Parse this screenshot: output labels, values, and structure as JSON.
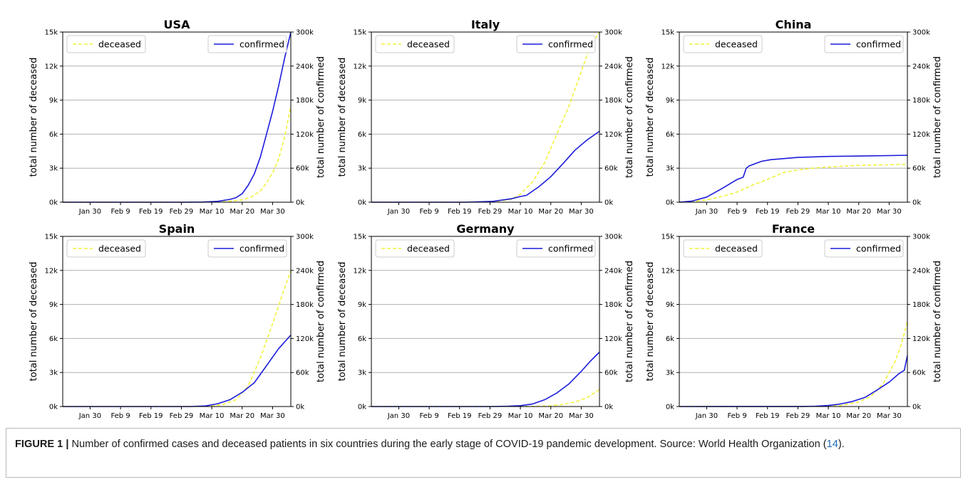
{
  "chart_data": [
    {
      "type": "line",
      "title": "USA",
      "xlabel": "",
      "ylabel": "total number of deceased",
      "ylabel_right": "total number of confirmed",
      "x_ticks": [
        "Jan 30",
        "Feb 9",
        "Feb 19",
        "Feb 29",
        "Mar 10",
        "Mar 20",
        "Mar 30"
      ],
      "x_range": [
        "Jan 21",
        "Apr 5"
      ],
      "ylim": [
        0,
        15000
      ],
      "ylim_right": [
        0,
        300000
      ],
      "y_ticks": [
        "0k",
        "3k",
        "6k",
        "9k",
        "12k",
        "15k"
      ],
      "y_ticks_right": [
        "0k",
        "60k",
        "120k",
        "180k",
        "240k",
        "300k"
      ],
      "grid": true,
      "legend": [
        {
          "name": "deceased",
          "position": "top-left",
          "color": "#f2f23a",
          "style": "dashed"
        },
        {
          "name": "confirmed",
          "position": "top-right",
          "color": "#1c1cdc",
          "style": "solid"
        }
      ],
      "series": [
        {
          "name": "deceased",
          "axis": "left",
          "x": [
            "Jan 21",
            "Feb 29",
            "Mar 10",
            "Mar 15",
            "Mar 20",
            "Mar 23",
            "Mar 26",
            "Mar 28",
            "Mar 30",
            "Apr 1",
            "Apr 3",
            "Apr 5"
          ],
          "values": [
            0,
            0,
            20,
            60,
            200,
            450,
            1000,
            1700,
            2600,
            3800,
            5800,
            8500
          ]
        },
        {
          "name": "confirmed",
          "axis": "right",
          "x": [
            "Jan 21",
            "Feb 29",
            "Mar 7",
            "Mar 12",
            "Mar 16",
            "Mar 18",
            "Mar 20",
            "Mar 22",
            "Mar 24",
            "Mar 26",
            "Mar 28",
            "Mar 30",
            "Apr 1",
            "Apr 3",
            "Apr 5"
          ],
          "values": [
            0,
            0,
            200,
            1500,
            5000,
            8000,
            15000,
            30000,
            50000,
            80000,
            120000,
            160000,
            205000,
            255000,
            300000
          ]
        }
      ]
    },
    {
      "type": "line",
      "title": "Italy",
      "xlabel": "",
      "ylabel": "total number of deceased",
      "ylabel_right": "total number of confirmed",
      "x_ticks": [
        "Jan 30",
        "Feb 9",
        "Feb 19",
        "Feb 29",
        "Mar 10",
        "Mar 20",
        "Mar 30"
      ],
      "x_range": [
        "Jan 21",
        "Apr 5"
      ],
      "ylim": [
        0,
        15000
      ],
      "ylim_right": [
        0,
        300000
      ],
      "y_ticks": [
        "0k",
        "3k",
        "6k",
        "9k",
        "12k",
        "15k"
      ],
      "y_ticks_right": [
        "0k",
        "60k",
        "120k",
        "180k",
        "240k",
        "300k"
      ],
      "grid": true,
      "legend": [
        {
          "name": "deceased",
          "position": "top-left",
          "color": "#f2f23a",
          "style": "dashed"
        },
        {
          "name": "confirmed",
          "position": "top-right",
          "color": "#1c1cdc",
          "style": "solid"
        }
      ],
      "series": [
        {
          "name": "deceased",
          "axis": "left",
          "x": [
            "Jan 21",
            "Feb 21",
            "Mar 1",
            "Mar 7",
            "Mar 10",
            "Mar 14",
            "Mar 18",
            "Mar 22",
            "Mar 26",
            "Mar 30",
            "Apr 2",
            "Apr 5"
          ],
          "values": [
            0,
            0,
            30,
            250,
            700,
            1800,
            3500,
            6000,
            8500,
            11500,
            13800,
            15000
          ]
        },
        {
          "name": "confirmed",
          "axis": "right",
          "x": [
            "Jan 21",
            "Feb 21",
            "Mar 1",
            "Mar 7",
            "Mar 10",
            "Mar 12",
            "Mar 16",
            "Mar 20",
            "Mar 24",
            "Mar 28",
            "Apr 1",
            "Apr 5"
          ],
          "values": [
            0,
            0,
            1500,
            6000,
            10000,
            12000,
            27000,
            45000,
            68000,
            92000,
            110000,
            125000
          ]
        }
      ]
    },
    {
      "type": "line",
      "title": "China",
      "xlabel": "",
      "ylabel": "total number of deceased",
      "ylabel_right": "total number of confirmed",
      "x_ticks": [
        "Jan 30",
        "Feb 9",
        "Feb 19",
        "Feb 29",
        "Mar 10",
        "Mar 20",
        "Mar 30"
      ],
      "x_range": [
        "Jan 21",
        "Apr 5"
      ],
      "ylim": [
        0,
        15000
      ],
      "ylim_right": [
        0,
        300000
      ],
      "y_ticks": [
        "0k",
        "3k",
        "6k",
        "9k",
        "12k",
        "15k"
      ],
      "y_ticks_right": [
        "0k",
        "60k",
        "120k",
        "180k",
        "240k",
        "300k"
      ],
      "grid": true,
      "legend": [
        {
          "name": "deceased",
          "position": "top-left",
          "color": "#f2f23a",
          "style": "dashed"
        },
        {
          "name": "confirmed",
          "position": "top-right",
          "color": "#1c1cdc",
          "style": "solid"
        }
      ],
      "series": [
        {
          "name": "deceased",
          "axis": "left",
          "x": [
            "Jan 21",
            "Jan 25",
            "Jan 30",
            "Feb 4",
            "Feb 9",
            "Feb 14",
            "Feb 19",
            "Feb 24",
            "Feb 29",
            "Mar 5",
            "Mar 10",
            "Mar 20",
            "Apr 5"
          ],
          "values": [
            0,
            40,
            200,
            500,
            900,
            1500,
            2000,
            2600,
            2850,
            3000,
            3100,
            3250,
            3330
          ]
        },
        {
          "name": "confirmed",
          "axis": "right",
          "x": [
            "Jan 21",
            "Jan 25",
            "Jan 30",
            "Feb 4",
            "Feb 9",
            "Feb 11",
            "Feb 12",
            "Feb 13",
            "Feb 17",
            "Feb 20",
            "Feb 29",
            "Mar 10",
            "Mar 20",
            "Apr 5"
          ],
          "values": [
            0,
            1800,
            9000,
            24000,
            40000,
            44000,
            60000,
            64000,
            72000,
            75000,
            79000,
            80700,
            81300,
            82700
          ]
        }
      ]
    },
    {
      "type": "line",
      "title": "Spain",
      "xlabel": "",
      "ylabel": "total number of deceased",
      "ylabel_right": "total number of confirmed",
      "x_ticks": [
        "Jan 30",
        "Feb 9",
        "Feb 19",
        "Feb 29",
        "Mar 10",
        "Mar 20",
        "Mar 30"
      ],
      "x_range": [
        "Jan 21",
        "Apr 5"
      ],
      "ylim": [
        0,
        15000
      ],
      "ylim_right": [
        0,
        300000
      ],
      "y_ticks": [
        "0k",
        "3k",
        "6k",
        "9k",
        "12k",
        "15k"
      ],
      "y_ticks_right": [
        "0k",
        "60k",
        "120k",
        "180k",
        "240k",
        "300k"
      ],
      "grid": true,
      "legend": [
        {
          "name": "deceased",
          "position": "top-left",
          "color": "#f2f23a",
          "style": "dashed"
        },
        {
          "name": "confirmed",
          "position": "top-right",
          "color": "#1c1cdc",
          "style": "solid"
        }
      ],
      "series": [
        {
          "name": "deceased",
          "axis": "left",
          "x": [
            "Jan 21",
            "Mar 3",
            "Mar 10",
            "Mar 14",
            "Mar 18",
            "Mar 22",
            "Mar 26",
            "Mar 30",
            "Apr 2",
            "Apr 5"
          ],
          "values": [
            0,
            0,
            40,
            200,
            600,
            1800,
            4300,
            7300,
            9700,
            12000
          ]
        },
        {
          "name": "confirmed",
          "axis": "right",
          "x": [
            "Jan 21",
            "Mar 3",
            "Mar 8",
            "Mar 12",
            "Mar 16",
            "Mar 20",
            "Mar 24",
            "Mar 28",
            "Apr 1",
            "Apr 5"
          ],
          "values": [
            0,
            0,
            1000,
            5000,
            12000,
            25000,
            42000,
            72000,
            102000,
            126000
          ]
        }
      ]
    },
    {
      "type": "line",
      "title": "Germany",
      "xlabel": "",
      "ylabel": "total number of deceased",
      "ylabel_right": "total number of confirmed",
      "x_ticks": [
        "Jan 30",
        "Feb 9",
        "Feb 19",
        "Feb 29",
        "Mar 10",
        "Mar 20",
        "Mar 30"
      ],
      "x_range": [
        "Jan 21",
        "Apr 5"
      ],
      "ylim": [
        0,
        15000
      ],
      "ylim_right": [
        0,
        300000
      ],
      "y_ticks": [
        "0k",
        "3k",
        "6k",
        "9k",
        "12k",
        "15k"
      ],
      "y_ticks_right": [
        "0k",
        "60k",
        "120k",
        "180k",
        "240k",
        "300k"
      ],
      "grid": true,
      "legend": [
        {
          "name": "deceased",
          "position": "top-left",
          "color": "#f2f23a",
          "style": "dashed"
        },
        {
          "name": "confirmed",
          "position": "top-right",
          "color": "#1c1cdc",
          "style": "solid"
        }
      ],
      "series": [
        {
          "name": "deceased",
          "axis": "left",
          "x": [
            "Jan 21",
            "Mar 15",
            "Mar 20",
            "Mar 24",
            "Mar 28",
            "Apr 1",
            "Apr 5"
          ],
          "values": [
            0,
            10,
            60,
            180,
            400,
            800,
            1500
          ]
        },
        {
          "name": "confirmed",
          "axis": "right",
          "x": [
            "Jan 21",
            "Feb 29",
            "Mar 6",
            "Mar 10",
            "Mar 14",
            "Mar 18",
            "Mar 22",
            "Mar 26",
            "Mar 30",
            "Apr 2",
            "Apr 5"
          ],
          "values": [
            0,
            0,
            500,
            1500,
            4500,
            12000,
            24000,
            40000,
            62000,
            80000,
            96000
          ]
        }
      ]
    },
    {
      "type": "line",
      "title": "France",
      "xlabel": "",
      "ylabel": "total number of deceased",
      "ylabel_right": "total number of confirmed",
      "x_ticks": [
        "Jan 30",
        "Feb 9",
        "Feb 19",
        "Feb 29",
        "Mar 10",
        "Mar 20",
        "Mar 30"
      ],
      "x_range": [
        "Jan 21",
        "Apr 5"
      ],
      "ylim": [
        0,
        15000
      ],
      "ylim_right": [
        0,
        300000
      ],
      "y_ticks": [
        "0k",
        "3k",
        "6k",
        "9k",
        "12k",
        "15k"
      ],
      "y_ticks_right": [
        "0k",
        "60k",
        "120k",
        "180k",
        "240k",
        "300k"
      ],
      "grid": true,
      "legend": [
        {
          "name": "deceased",
          "position": "top-left",
          "color": "#f2f23a",
          "style": "dashed"
        },
        {
          "name": "confirmed",
          "position": "top-right",
          "color": "#1c1cdc",
          "style": "solid"
        }
      ],
      "series": [
        {
          "name": "deceased",
          "axis": "left",
          "x": [
            "Jan 21",
            "Mar 8",
            "Mar 14",
            "Mar 20",
            "Mar 24",
            "Mar 28",
            "Apr 1",
            "Apr 3",
            "Apr 5"
          ],
          "values": [
            0,
            10,
            80,
            400,
            900,
            2000,
            4000,
            5500,
            7500
          ]
        },
        {
          "name": "confirmed",
          "axis": "right",
          "x": [
            "Jan 21",
            "Mar 1",
            "Mar 6",
            "Mar 10",
            "Mar 14",
            "Mar 18",
            "Mar 22",
            "Mar 26",
            "Mar 30",
            "Apr 2",
            "Apr 4",
            "Apr 5"
          ],
          "values": [
            0,
            100,
            500,
            1800,
            4500,
            9000,
            16000,
            29000,
            43000,
            57000,
            64000,
            90000
          ]
        }
      ]
    }
  ],
  "caption": {
    "label": "FIGURE 1 |",
    "text_before": " Number of confirmed cases and deceased patients in six countries during the early stage of COVID-19 pandemic development. Source: World Health Organization (",
    "reference": "14",
    "text_after": ")."
  }
}
